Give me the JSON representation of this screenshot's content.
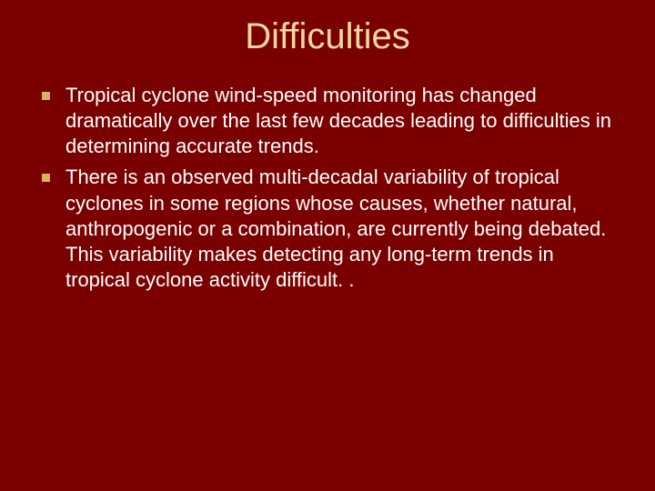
{
  "slide": {
    "title": "Difficulties",
    "background_color": "#7a0000",
    "title_color": "#f2d8a0",
    "title_fontsize": 40,
    "bullet_marker_color": "#d8b060",
    "body_text_color": "#ffffff",
    "body_fontsize": 22,
    "bullets": [
      {
        "text": "Tropical cyclone wind-speed monitoring has changed dramatically over the last few decades leading to difficulties in determining accurate trends."
      },
      {
        "text": "There is an observed multi-decadal variability of tropical cyclones in some regions whose causes, whether natural, anthropogenic or a combination, are currently being debated. This variability makes detecting any long-term trends in tropical cyclone activity difficult. ."
      }
    ]
  }
}
